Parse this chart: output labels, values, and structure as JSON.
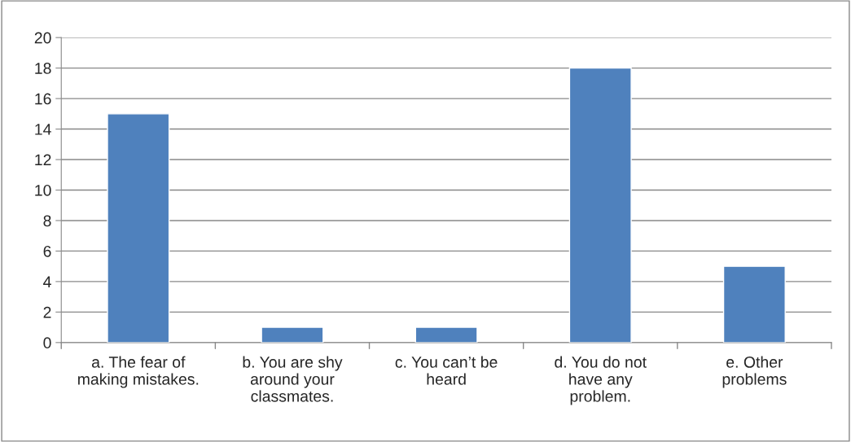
{
  "chart_data": {
    "type": "bar",
    "categories": [
      "a. The fear of\nmaking mistakes.",
      "b. You are shy\naround your\nclassmates.",
      "c. You can’t be\nheard",
      "d. You do not\nhave any\nproblem.",
      "e. Other\nproblems"
    ],
    "values": [
      15,
      1,
      1,
      18,
      5
    ],
    "color": "#4f81bd",
    "ylim": [
      0,
      20
    ],
    "yticks": [
      0,
      2,
      4,
      6,
      8,
      10,
      12,
      14,
      16,
      18,
      20
    ],
    "grid": "y"
  }
}
